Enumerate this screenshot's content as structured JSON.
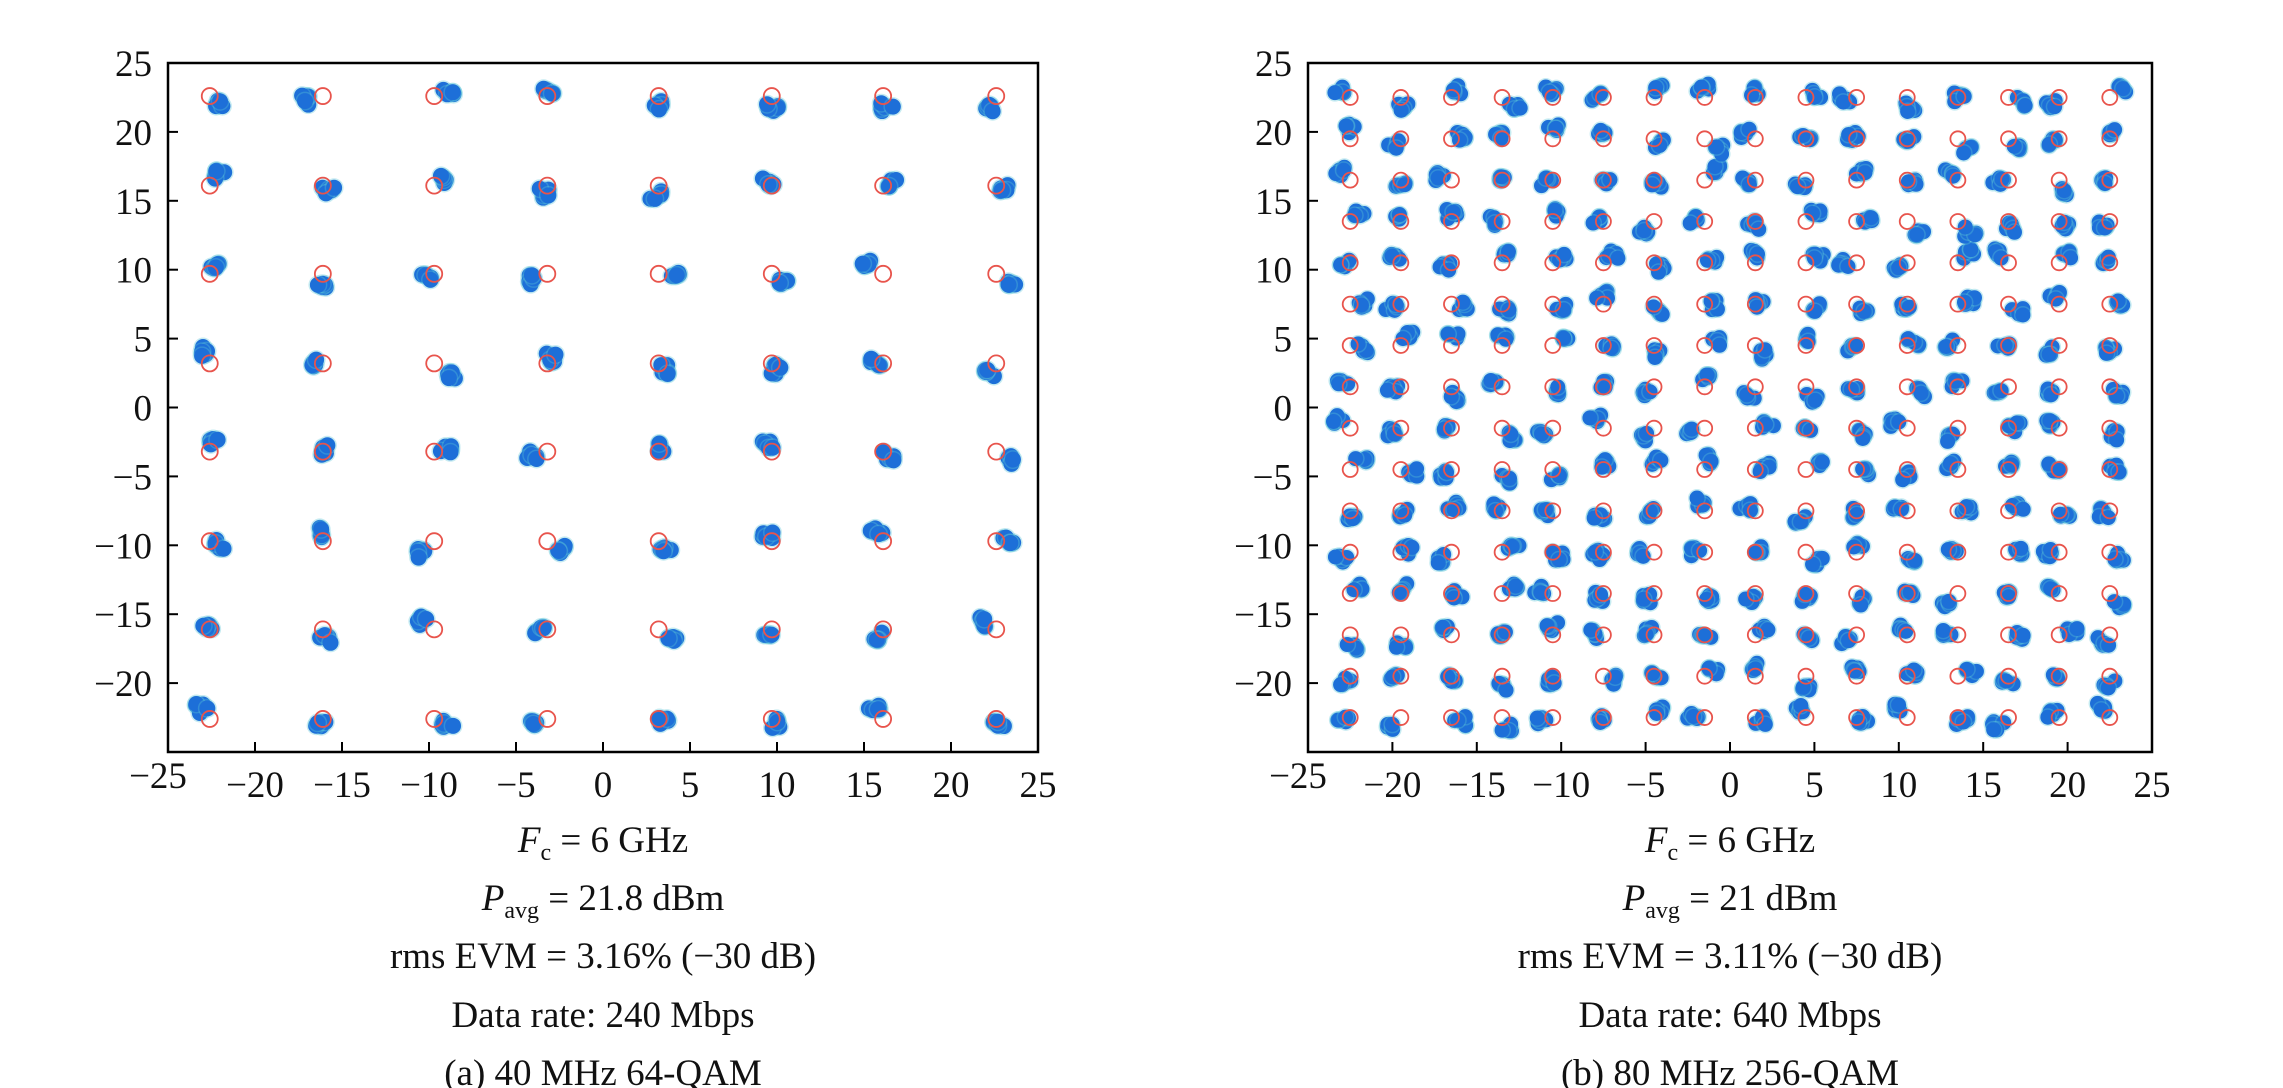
{
  "chart_data": [
    {
      "type": "scatter",
      "subtype": "constellation",
      "title": "(a) 40 MHz 64-QAM",
      "xlim": [
        -25,
        25
      ],
      "ylim": [
        -25,
        25
      ],
      "xticks": [
        "−25",
        "−20",
        "−15",
        "−10",
        "−5",
        "0",
        "5",
        "10",
        "15",
        "20",
        "25"
      ],
      "yticks": [
        "25",
        "20",
        "15",
        "10",
        "5",
        "0",
        "−5",
        "−10",
        "−15",
        "−20",
        "−25"
      ],
      "ideal_levels": [
        -22.6,
        -16.1,
        -9.7,
        -3.2,
        3.2,
        9.7,
        16.1,
        22.6
      ],
      "measured_spread": 0.9,
      "seed": 7,
      "series": [
        {
          "name": "Ideal symbols",
          "marker": "open-circle",
          "color": "#e8544c"
        },
        {
          "name": "Measured symbols",
          "marker": "filled-dot",
          "color": "#1d6fd8"
        }
      ],
      "captions": {
        "fc_sym": "F",
        "fc_sub": "c",
        "fc_val": " = 6 GHz",
        "p_sym": "P",
        "p_sub": "avg",
        "p_val": " = 21.8 dBm",
        "evm": "rms EVM = 3.16% (−30 dB)",
        "rate": "Data rate: 240 Mbps",
        "label": "(a) 40 MHz 64-QAM"
      }
    },
    {
      "type": "scatter",
      "subtype": "constellation",
      "title": "(b) 80 MHz 256-QAM",
      "xlim": [
        -25,
        25
      ],
      "ylim": [
        -25,
        25
      ],
      "xticks": [
        "−25",
        "−20",
        "−15",
        "−10",
        "−5",
        "0",
        "5",
        "10",
        "15",
        "20",
        "25"
      ],
      "yticks": [
        "25",
        "20",
        "15",
        "10",
        "5",
        "0",
        "−5",
        "−10",
        "−15",
        "−20",
        "−25"
      ],
      "ideal_levels": [
        -22.5,
        -19.5,
        -16.5,
        -13.5,
        -10.5,
        -7.5,
        -4.5,
        -1.5,
        1.5,
        4.5,
        7.5,
        10.5,
        13.5,
        16.5,
        19.5,
        22.5
      ],
      "measured_spread": 0.8,
      "seed": 13,
      "series": [
        {
          "name": "Ideal symbols",
          "marker": "open-circle",
          "color": "#e8544c"
        },
        {
          "name": "Measured symbols",
          "marker": "filled-dot",
          "color": "#1d6fd8"
        }
      ],
      "captions": {
        "fc_sym": "F",
        "fc_sub": "c",
        "fc_val": " = 6 GHz",
        "p_sym": "P",
        "p_sub": "avg",
        "p_val": " = 21 dBm",
        "evm": "rms EVM = 3.11% (−30 dB)",
        "rate": "Data rate: 640 Mbps",
        "label": "(b) 80 MHz 256-QAM"
      }
    }
  ]
}
